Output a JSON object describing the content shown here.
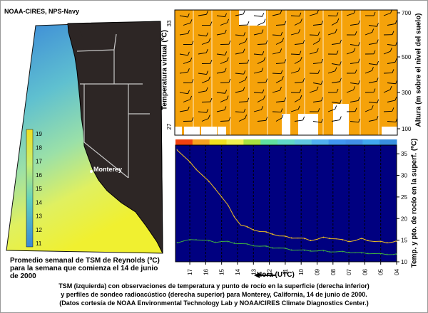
{
  "credit": "NOAA-CIRES, NPS-Navy",
  "map": {
    "city_label": "Monterey",
    "legend_ticks": [
      "19",
      "18",
      "17",
      "16",
      "15",
      "14",
      "13",
      "12",
      "11"
    ],
    "caption_lines": [
      "Promedio semanal de TSM de Reynolds (ºC)",
      "para la semana que comienza el 14 de junio",
      "de 2000"
    ]
  },
  "profiler": {
    "left_axis_label": "Temperatura virtual (ºC)",
    "left_ticks": [
      "33",
      "27"
    ],
    "right_axis_label": "Altura (m sobre el nivel del suelo)",
    "right_ticks": [
      "700",
      "500",
      "300",
      "100"
    ]
  },
  "surface": {
    "y_axis_label": "Temp. y pto. de rocío en la superf. (ºC)",
    "y_ticks": [
      "35",
      "30",
      "25",
      "20",
      "15",
      "10"
    ],
    "x_ticks": [
      "17",
      "16",
      "15",
      "14",
      "13",
      "12",
      "11",
      "10",
      "09",
      "08",
      "07",
      "06",
      "05",
      "04"
    ],
    "x_axis_label": "Hora (UTC)"
  },
  "caption": [
    "TSM (izquierda) con observaciones de temperatura y punto de rocío en la superficie (derecha inferior)",
    "y perfiles de sondeo radioacústico (derecha superior) para Monterey, California, 14 de junio de 2000.",
    "(Datos cortesía de NOAA Environmental Technology Lab y NOAA/CIRES Climate Diagnostics Center.)"
  ],
  "chart_data": {
    "type": "line",
    "x_label": "Hora (UTC)",
    "y_label": "Temp. y pto. de rocío en la superf. (ºC)",
    "x_ticks": [
      "17",
      "16",
      "15",
      "14",
      "13",
      "12",
      "11",
      "10",
      "09",
      "08",
      "07",
      "06",
      "05",
      "04"
    ],
    "ylim": [
      10,
      37
    ],
    "series": [
      {
        "name": "Temperatura",
        "color": "#f0c020",
        "x": [
          17.8,
          17.4,
          17.0,
          16.6,
          16.2,
          15.8,
          15.4,
          15.0,
          14.6,
          14.2,
          13.8,
          13.4,
          13.0,
          12.6,
          12.2,
          11.8,
          11.4,
          11.0,
          10.6,
          10.2,
          9.8,
          9.4,
          9.0,
          8.6,
          8.2,
          7.8,
          7.4,
          7.0,
          6.6,
          6.2,
          5.8,
          5.4,
          5.0,
          4.6,
          4.2,
          4.0
        ],
        "y": [
          36,
          34.5,
          33,
          31.5,
          30,
          28.5,
          27,
          25,
          23,
          20.5,
          18.5,
          18,
          17.5,
          17,
          16.8,
          16.5,
          16,
          15.8,
          15.6,
          15.5,
          15.3,
          15.0,
          15.2,
          15.6,
          15.5,
          15.3,
          15.0,
          14.8,
          14.9,
          15.3,
          15.0,
          14.7,
          14.6,
          14.5,
          14.6,
          14.7
        ]
      },
      {
        "name": "Punto de rocío",
        "color": "#40b040",
        "x": [
          17.8,
          17.4,
          17.0,
          16.6,
          16.2,
          15.8,
          15.4,
          15.0,
          14.6,
          14.2,
          13.8,
          13.4,
          13.0,
          12.6,
          12.2,
          11.8,
          11.4,
          11.0,
          10.6,
          10.2,
          9.8,
          9.4,
          9.0,
          8.6,
          8.2,
          7.8,
          7.4,
          7.0,
          6.6,
          6.2,
          5.8,
          5.4,
          5.0,
          4.6,
          4.2,
          4.0
        ],
        "y": [
          14.5,
          14.8,
          15.0,
          15.2,
          15.0,
          14.8,
          14.6,
          14.7,
          14.6,
          14.4,
          14.2,
          14.0,
          13.8,
          13.6,
          13.5,
          13.3,
          13.2,
          13.0,
          12.8,
          12.7,
          12.6,
          12.6,
          12.5,
          12.5,
          12.4,
          12.3,
          12.3,
          12.2,
          12.1,
          12.0,
          12.0,
          11.9,
          11.8,
          11.8,
          11.7,
          11.7
        ]
      }
    ]
  },
  "colors": {
    "ocean_warm": "#e8e020",
    "ocean_cool": "#40a8e8",
    "land": "#2a2424",
    "profiler_fill": "#f5a20a",
    "surface_bg": "#000080",
    "temp_line": "#f0c020",
    "dew_line": "#40b040"
  }
}
